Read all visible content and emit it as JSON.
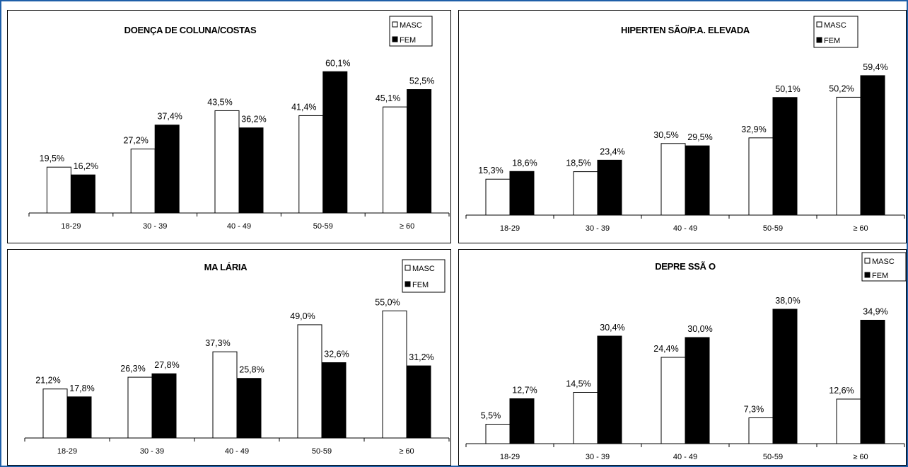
{
  "colors": {
    "masc": "#ffffff",
    "fem": "#000000",
    "frame": "#1f5fa8"
  },
  "chart_data": [
    {
      "type": "bar",
      "title": "DOENÇA DE COLUNA/COSTAS",
      "categories": [
        "18-29",
        "30 - 39",
        "40 - 49",
        "50-59",
        "≥ 60"
      ],
      "series": [
        {
          "name": "MASC",
          "values": [
            19.5,
            27.2,
            43.5,
            41.4,
            45.1
          ],
          "labels": [
            "19,5%",
            "27,2%",
            "43,5%",
            "41,4%",
            "45,1%"
          ]
        },
        {
          "name": "FEM",
          "values": [
            16.2,
            37.4,
            36.2,
            60.1,
            52.5
          ],
          "labels": [
            "16,2%",
            "37,4%",
            "36,2%",
            "60,1%",
            "52,5%"
          ]
        }
      ],
      "ylim": [
        0,
        65
      ],
      "grid": false,
      "legend": "top-right"
    },
    {
      "type": "bar",
      "title": "HIPERTEN SÃO/P.A. ELEVADA",
      "categories": [
        "18-29",
        "30 - 39",
        "40 - 49",
        "50-59",
        "≥ 60"
      ],
      "series": [
        {
          "name": "MASC",
          "values": [
            15.3,
            18.5,
            30.5,
            32.9,
            50.2
          ],
          "labels": [
            "15,3%",
            "18,5%",
            "30,5%",
            "32,9%",
            "50,2%"
          ]
        },
        {
          "name": "FEM",
          "values": [
            18.6,
            23.4,
            29.5,
            50.1,
            59.4
          ],
          "labels": [
            "18,6%",
            "23,4%",
            "29,5%",
            "50,1%",
            "59,4%"
          ]
        }
      ],
      "ylim": [
        0,
        66
      ],
      "grid": false,
      "legend": "top-right"
    },
    {
      "type": "bar",
      "title": "MA LÁRIA",
      "categories": [
        "18-29",
        "30 - 39",
        "40 - 49",
        "50-59",
        "≥ 60"
      ],
      "series": [
        {
          "name": "MASC",
          "values": [
            21.2,
            26.3,
            37.3,
            49.0,
            55.0
          ],
          "labels": [
            "21,2%",
            "26,3%",
            "37,3%",
            "49,0%",
            "55,0%"
          ]
        },
        {
          "name": "FEM",
          "values": [
            17.8,
            27.8,
            25.8,
            32.6,
            31.2
          ],
          "labels": [
            "17,8%",
            "27,8%",
            "25,8%",
            "32,6%",
            "31,2%"
          ]
        }
      ],
      "ylim": [
        0,
        60
      ],
      "grid": false,
      "legend": "top-right"
    },
    {
      "type": "bar",
      "title": "DEPRE SSÃ O",
      "categories": [
        "18-29",
        "30 - 39",
        "40 - 49",
        "50-59",
        "≥ 60"
      ],
      "series": [
        {
          "name": "MASC",
          "values": [
            5.5,
            14.5,
            24.4,
            7.3,
            12.6
          ],
          "labels": [
            "5,5%",
            "14,5%",
            "24,4%",
            "7,3%",
            "12,6%"
          ]
        },
        {
          "name": "FEM",
          "values": [
            12.7,
            30.4,
            30.0,
            38.0,
            34.9
          ],
          "labels": [
            "12,7%",
            "30,4%",
            "30,0%",
            "38,0%",
            "34,9%"
          ]
        }
      ],
      "ylim": [
        0,
        42
      ],
      "grid": false,
      "legend": "top-right"
    }
  ]
}
